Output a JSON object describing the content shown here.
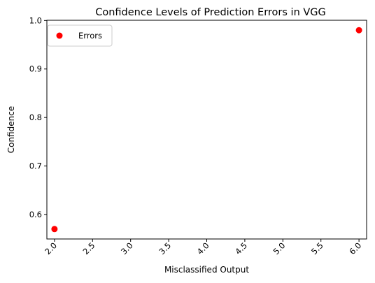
{
  "chart_data": {
    "type": "scatter",
    "title": "Confidence Levels of Prediction Errors in VGG",
    "xlabel": "Misclassified Output",
    "ylabel": "Confidence",
    "xlim": [
      1.9,
      6.1
    ],
    "ylim": [
      0.5495,
      1.0005
    ],
    "xticks": [
      2.0,
      2.5,
      3.0,
      3.5,
      4.0,
      4.5,
      5.0,
      5.5,
      6.0
    ],
    "xtick_labels": [
      "2.0",
      "2.5",
      "3.0",
      "3.5",
      "4.0",
      "4.5",
      "5.0",
      "5.5",
      "6.0"
    ],
    "xtick_rotation": 45,
    "yticks": [
      0.6,
      0.7,
      0.8,
      0.9,
      1.0
    ],
    "ytick_labels": [
      "0.6",
      "0.7",
      "0.8",
      "0.9",
      "1.0"
    ],
    "grid": false,
    "legend_position": "upper-left",
    "series": [
      {
        "name": "Errors",
        "color": "#ff0000",
        "points": [
          {
            "x": 2.0,
            "y": 0.57
          },
          {
            "x": 6.0,
            "y": 0.98
          }
        ]
      }
    ]
  }
}
